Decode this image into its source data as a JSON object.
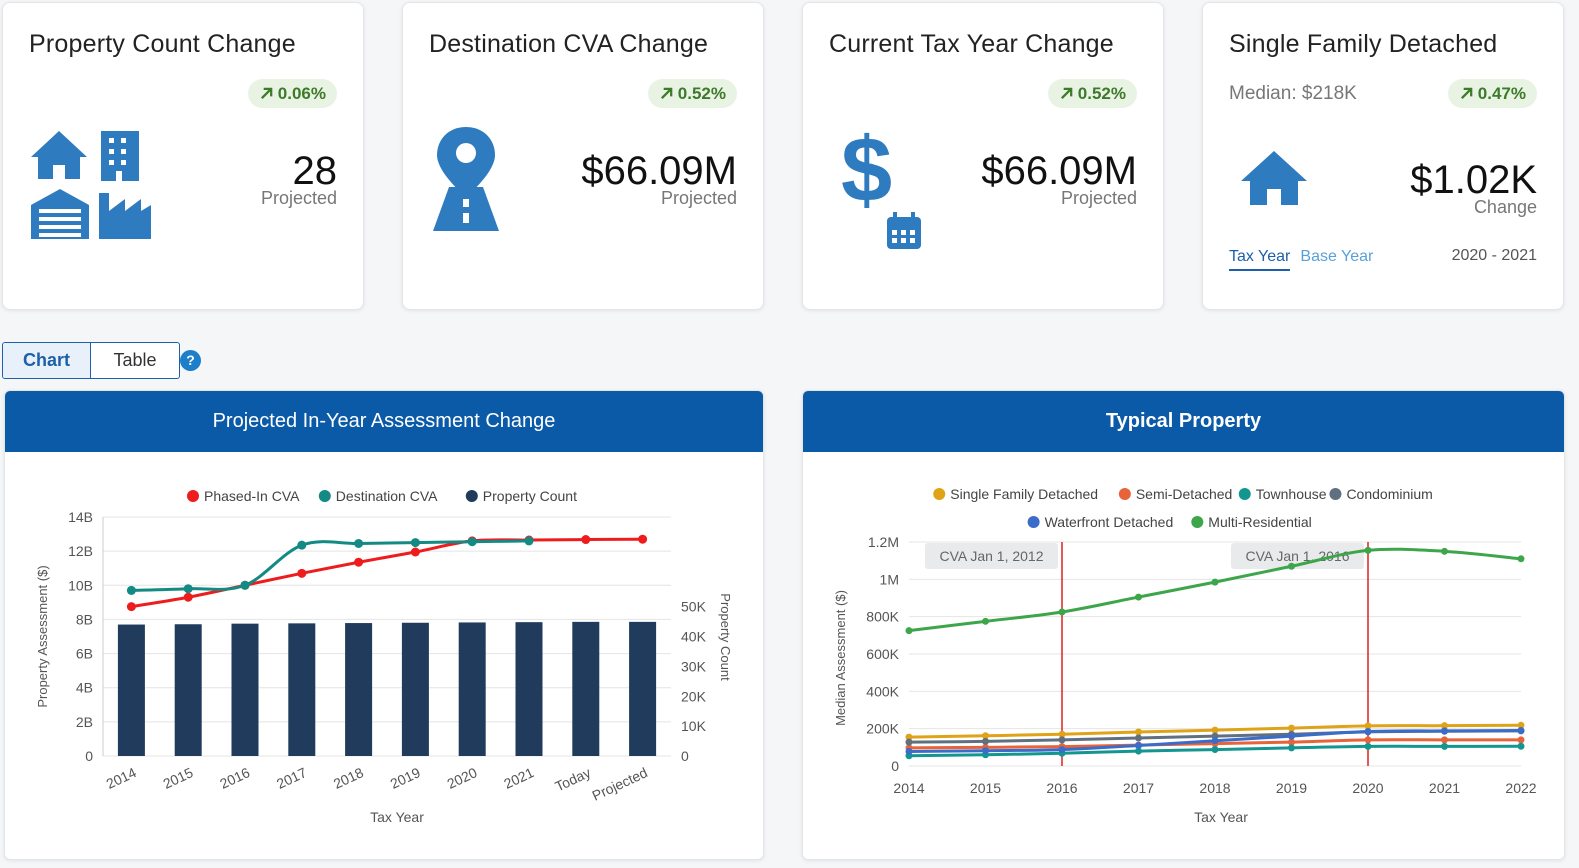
{
  "cards": [
    {
      "title": "Property Count Change",
      "badge": "0.06%",
      "value": "28",
      "sub": "Projected"
    },
    {
      "title": "Destination CVA Change",
      "badge": "0.52%",
      "value": "$66.09M",
      "sub": "Projected"
    },
    {
      "title": "Current Tax Year Change",
      "badge": "0.52%",
      "value": "$66.09M",
      "sub": "Projected"
    },
    {
      "title": "Single Family Detached",
      "badge": "0.47%",
      "value": "$1.02K",
      "sub": "Change",
      "median": "Median: $218K",
      "tab_tax_year": "Tax Year",
      "tab_base_year": "Base Year",
      "year_range": "2020 - 2021"
    }
  ],
  "view_toggle": {
    "chart": "Chart",
    "table": "Table",
    "help": "?"
  },
  "colors": {
    "primary": "#0b5aa8",
    "badge_bg": "#e9f3e4",
    "badge_text": "#3d7a2a",
    "icon": "#2f7bbf"
  },
  "chart_data": [
    {
      "type": "bar",
      "title": "Projected In-Year Assessment Change",
      "xlabel": "Tax Year",
      "ylabel": "Property Assessment ($)",
      "y2label": "Property Count",
      "categories": [
        "2014",
        "2015",
        "2016",
        "2017",
        "2018",
        "2019",
        "2020",
        "2021",
        "Today",
        "Projected"
      ],
      "ylim": [
        0,
        14
      ],
      "yticks": [
        "0",
        "2B",
        "4B",
        "6B",
        "8B",
        "10B",
        "12B",
        "14B"
      ],
      "y2lim": [
        0,
        80
      ],
      "y2ticks": [
        "0",
        "10K",
        "20K",
        "30K",
        "40K",
        "50K"
      ],
      "legend_position": "top",
      "series": [
        {
          "name": "Phased-In CVA",
          "kind": "line",
          "axis": "left",
          "color": "#ee1c1c",
          "values": [
            8.75,
            9.3,
            10.0,
            10.7,
            11.35,
            11.95,
            12.6,
            12.65,
            12.68,
            12.7
          ]
        },
        {
          "name": "Destination CVA",
          "kind": "line",
          "axis": "left",
          "color": "#138a83",
          "values": [
            9.7,
            9.8,
            10.0,
            12.35,
            12.45,
            12.5,
            12.55,
            12.6,
            null,
            null
          ]
        },
        {
          "name": "Property Count",
          "kind": "bar",
          "axis": "right",
          "color": "#213b5c",
          "values": [
            44,
            44.1,
            44.3,
            44.4,
            44.5,
            44.6,
            44.7,
            44.8,
            44.9,
            44.9
          ]
        }
      ]
    },
    {
      "type": "line",
      "title": "Typical Property",
      "xlabel": "Tax Year",
      "ylabel": "Median Assessment ($)",
      "x": [
        2014,
        2015,
        2016,
        2017,
        2018,
        2019,
        2020,
        2021,
        2022
      ],
      "ylim": [
        0,
        1200000
      ],
      "yticks": [
        "0",
        "200K",
        "400K",
        "600K",
        "800K",
        "1M",
        "1.2M"
      ],
      "legend_position": "top",
      "annotations": [
        {
          "x": 2016,
          "label": "CVA Jan 1, 2012"
        },
        {
          "x": 2020,
          "label": "CVA Jan 1, 2016"
        }
      ],
      "series": [
        {
          "name": "Single Family Detached",
          "color": "#e0a318",
          "values": [
            155000,
            162000,
            170000,
            182000,
            192000,
            203000,
            215000,
            216000,
            218000
          ]
        },
        {
          "name": "Semi-Detached",
          "color": "#e8623a",
          "values": [
            97000,
            100000,
            104000,
            112000,
            120000,
            128000,
            140000,
            140000,
            140000
          ]
        },
        {
          "name": "Townhouse",
          "color": "#139690",
          "values": [
            55000,
            60000,
            68000,
            80000,
            88000,
            97000,
            105000,
            105000,
            106000
          ]
        },
        {
          "name": "Condominium",
          "color": "#607080",
          "values": [
            128000,
            132000,
            140000,
            150000,
            160000,
            170000,
            183000,
            186000,
            188000
          ]
        },
        {
          "name": "Waterfront Detached",
          "color": "#3a6dc9",
          "values": [
            78000,
            82000,
            88000,
            110000,
            135000,
            160000,
            185000,
            188000,
            190000
          ]
        },
        {
          "name": "Multi-Residential",
          "color": "#3da54a",
          "values": [
            725000,
            775000,
            825000,
            905000,
            985000,
            1070000,
            1155000,
            1150000,
            1110000
          ]
        }
      ]
    }
  ]
}
